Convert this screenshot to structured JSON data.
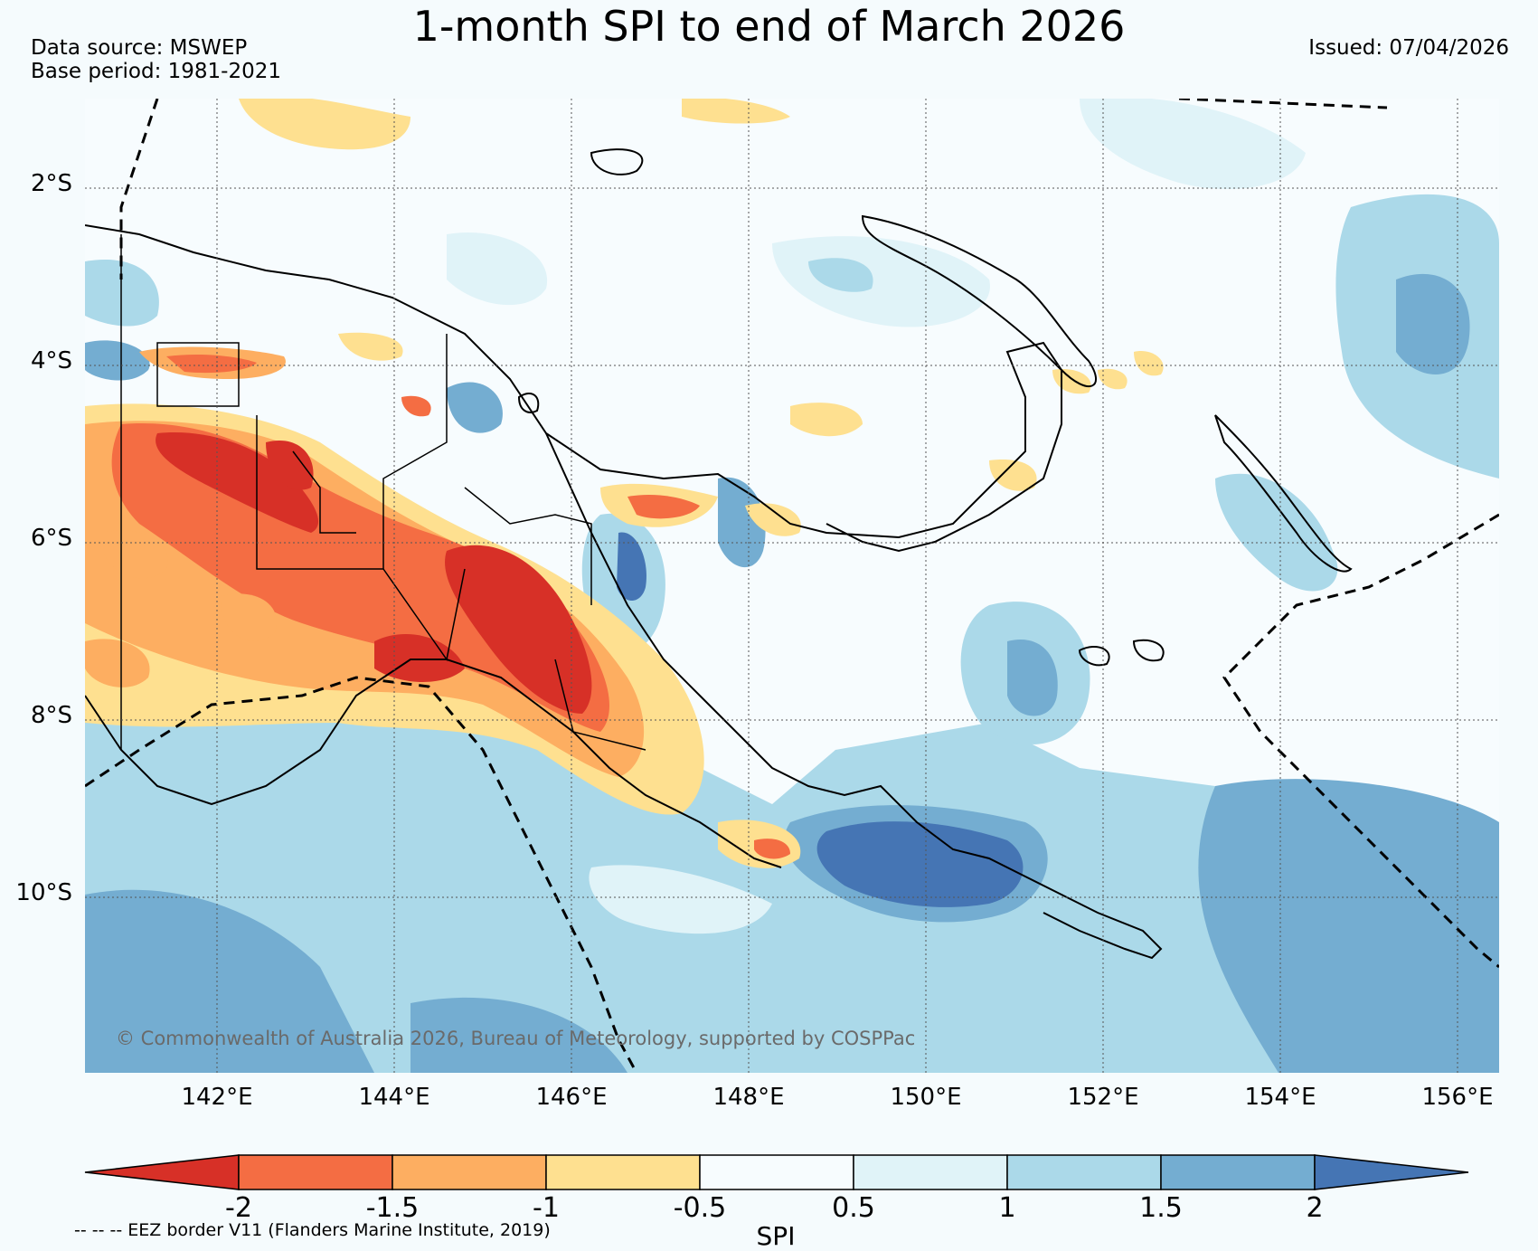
{
  "title": "1-month SPI to end of March 2026",
  "data_source": "Data source: MSWEP",
  "base_period": "Base period: 1981-2021",
  "issued": "Issued: 07/04/2026",
  "copyright": "© Commonwealth of Australia 2026, Bureau of Meteorology, supported by COSPPac",
  "lat_labels": [
    "2°S",
    "4°S",
    "6°S",
    "8°S",
    "10°S"
  ],
  "lon_labels": [
    "142°E",
    "144°E",
    "146°E",
    "148°E",
    "150°E",
    "152°E",
    "154°E",
    "156°E"
  ],
  "colorbar": {
    "title": "SPI",
    "ticks": [
      "-2",
      "-1.5",
      "-1",
      "-0.5",
      "0.5",
      "1",
      "1.5",
      "2"
    ],
    "colors": [
      "#d73027",
      "#f46d43",
      "#fdae61",
      "#fee090",
      "#f7fcfe",
      "#e0f3f8",
      "#abd9e9",
      "#74add1",
      "#4575b4"
    ]
  },
  "eez_note": "-- -- -- EEZ border V11 (Flanders Marine Institute, 2019)"
}
